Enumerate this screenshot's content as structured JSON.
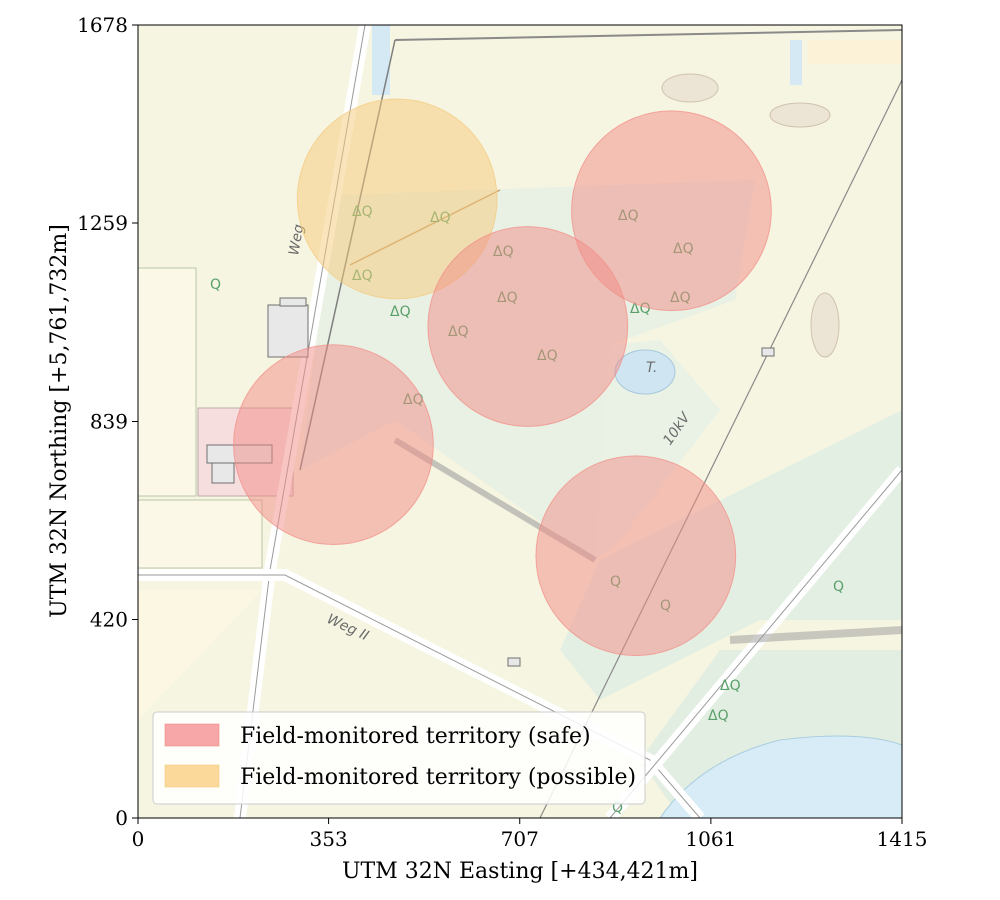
{
  "chart_data": {
    "type": "map",
    "xlabel": "UTM 32N Easting [+434,421m]",
    "ylabel": "UTM 32N Northing [+5,761,732m]",
    "xlim": [
      0,
      1415
    ],
    "ylim": [
      0,
      1678
    ],
    "xticks": [
      0,
      353,
      707,
      1061,
      1415
    ],
    "yticks": [
      0,
      420,
      839,
      1259,
      1678
    ],
    "grid": false,
    "legend_position": "lower-left",
    "legend": [
      {
        "label": "Field-monitored territory (safe)",
        "color": "#f7a7a7"
      },
      {
        "label": "Field-monitored territory (possible)",
        "color": "#fbd99a"
      }
    ],
    "map_labels": [
      "Weg",
      "Weg II",
      "10kV",
      "T."
    ],
    "territories": [
      {
        "category": "possible",
        "x": 480,
        "y": 1310,
        "r": 185,
        "color": "#f5c97a"
      },
      {
        "category": "safe",
        "x": 362,
        "y": 790,
        "r": 185,
        "color": "#f28b86"
      },
      {
        "category": "safe",
        "x": 722,
        "y": 1040,
        "r": 185,
        "color": "#f28b86"
      },
      {
        "category": "safe",
        "x": 988,
        "y": 1285,
        "r": 185,
        "color": "#f28b86"
      },
      {
        "category": "safe",
        "x": 922,
        "y": 555,
        "r": 185,
        "color": "#f28b86"
      }
    ]
  }
}
